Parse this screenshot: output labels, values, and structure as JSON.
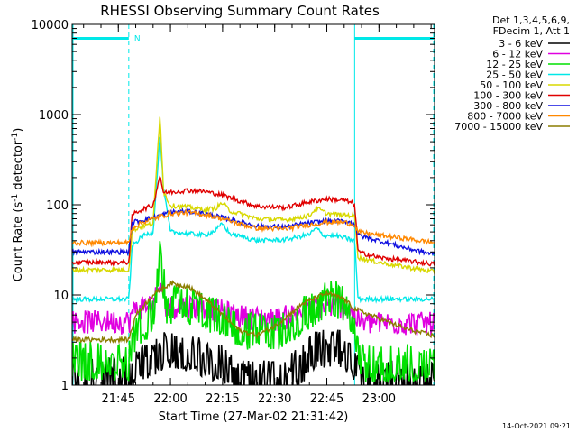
{
  "chart_data": {
    "type": "line",
    "title": "RHESSI Observing Summary Count Rates",
    "xlabel": "Start Time (27-Mar-02 21:31:42)",
    "ylabel": "Count Rate (s⁻¹ detector⁻¹)",
    "ylabel_parts": {
      "main": "Count Rate (s",
      "exp1": "-1",
      "mid": " detector",
      "exp2": "-1",
      "end": ")"
    },
    "ylog": true,
    "ylim": [
      1,
      10000
    ],
    "xlim": [
      "21:31:42",
      "23:16:00"
    ],
    "x_ticks": [
      "21:45",
      "22:00",
      "22:15",
      "22:30",
      "22:45",
      "23:00"
    ],
    "y_ticks": [
      "1",
      "10",
      "100",
      "1000",
      "10000"
    ],
    "legend_header": [
      "Det 1,3,4,5,6,9,",
      "FDecim 1, Att 1"
    ],
    "flag_label": "N",
    "night_intervals": [
      [
        "21:31:42",
        "21:48:00"
      ],
      [
        "22:53:00",
        "23:16:00"
      ]
    ],
    "series": [
      {
        "name": "3 - 6 keV",
        "color": "#000000",
        "noise": "spiky",
        "points": [
          [
            "21:31",
            1.1
          ],
          [
            "21:48",
            1.1
          ],
          [
            "21:50",
            1.4
          ],
          [
            "21:55",
            1.8
          ],
          [
            "22:00",
            2.2
          ],
          [
            "22:05",
            2.0
          ],
          [
            "22:10",
            1.7
          ],
          [
            "22:15",
            1.5
          ],
          [
            "22:20",
            1.0
          ],
          [
            "22:30",
            1.0
          ],
          [
            "22:38",
            1.5
          ],
          [
            "22:42",
            2.2
          ],
          [
            "22:48",
            2.3
          ],
          [
            "22:53",
            1.6
          ],
          [
            "22:55",
            1.0
          ],
          [
            "23:16",
            1.0
          ]
        ]
      },
      {
        "name": "6 - 12 keV",
        "color": "#e000e0",
        "noise": "band",
        "points": [
          [
            "21:31",
            5.2
          ],
          [
            "21:48",
            5.2
          ],
          [
            "21:50",
            7.2
          ],
          [
            "21:55",
            8.2
          ],
          [
            "21:57",
            13
          ],
          [
            "21:59",
            7.5
          ],
          [
            "22:05",
            7.8
          ],
          [
            "22:10",
            7.5
          ],
          [
            "22:15",
            6.8
          ],
          [
            "22:20",
            6.0
          ],
          [
            "22:30",
            5.5
          ],
          [
            "22:40",
            7.0
          ],
          [
            "22:45",
            7.8
          ],
          [
            "22:50",
            7.5
          ],
          [
            "22:53",
            6.0
          ],
          [
            "22:55",
            5.0
          ],
          [
            "23:16",
            5.0
          ]
        ]
      },
      {
        "name": "12 - 25 keV",
        "color": "#00e000",
        "noise": "spiky",
        "points": [
          [
            "21:31",
            1.6
          ],
          [
            "21:48",
            1.6
          ],
          [
            "21:50",
            3.5
          ],
          [
            "21:55",
            5
          ],
          [
            "21:57",
            25
          ],
          [
            "21:59",
            6
          ],
          [
            "22:02",
            7
          ],
          [
            "22:06",
            6.5
          ],
          [
            "22:10",
            5.5
          ],
          [
            "22:15",
            4.5
          ],
          [
            "22:20",
            3.5
          ],
          [
            "22:30",
            3.2
          ],
          [
            "22:38",
            5
          ],
          [
            "22:43",
            7
          ],
          [
            "22:47",
            8
          ],
          [
            "22:51",
            6.5
          ],
          [
            "22:53",
            4
          ],
          [
            "22:55",
            1.5
          ],
          [
            "23:16",
            1.5
          ]
        ]
      },
      {
        "name": "25 - 50 keV",
        "color": "#00e8e8",
        "points": [
          [
            "21:31",
            9
          ],
          [
            "21:48",
            9
          ],
          [
            "21:49",
            35
          ],
          [
            "21:52",
            45
          ],
          [
            "21:55",
            50
          ],
          [
            "21:57",
            600
          ],
          [
            "21:58",
            150
          ],
          [
            "22:00",
            50
          ],
          [
            "22:05",
            48
          ],
          [
            "22:10",
            46
          ],
          [
            "22:13",
            52
          ],
          [
            "22:15",
            62
          ],
          [
            "22:17",
            48
          ],
          [
            "22:25",
            40
          ],
          [
            "22:33",
            41
          ],
          [
            "22:40",
            47
          ],
          [
            "22:42",
            55
          ],
          [
            "22:44",
            46
          ],
          [
            "22:48",
            45
          ],
          [
            "22:53",
            40
          ],
          [
            "22:54",
            9
          ],
          [
            "23:16",
            9
          ]
        ]
      },
      {
        "name": "50 - 100 keV",
        "color": "#d8d800",
        "points": [
          [
            "21:31",
            19
          ],
          [
            "21:48",
            19
          ],
          [
            "21:49",
            52
          ],
          [
            "21:52",
            58
          ],
          [
            "21:55",
            62
          ],
          [
            "21:57",
            1050
          ],
          [
            "21:58",
            140
          ],
          [
            "22:00",
            98
          ],
          [
            "22:05",
            95
          ],
          [
            "22:10",
            88
          ],
          [
            "22:13",
            92
          ],
          [
            "22:15",
            105
          ],
          [
            "22:17",
            86
          ],
          [
            "22:25",
            70
          ],
          [
            "22:33",
            68
          ],
          [
            "22:40",
            76
          ],
          [
            "22:42",
            92
          ],
          [
            "22:45",
            80
          ],
          [
            "22:48",
            78
          ],
          [
            "22:53",
            76
          ],
          [
            "22:54",
            26
          ],
          [
            "23:00",
            23
          ],
          [
            "23:16",
            18
          ]
        ]
      },
      {
        "name": "100 - 300 keV",
        "color": "#e00000",
        "points": [
          [
            "21:31",
            23
          ],
          [
            "21:48",
            23
          ],
          [
            "21:49",
            78
          ],
          [
            "21:52",
            90
          ],
          [
            "21:55",
            98
          ],
          [
            "21:57",
            215
          ],
          [
            "21:58",
            135
          ],
          [
            "22:00",
            138
          ],
          [
            "22:05",
            145
          ],
          [
            "22:10",
            140
          ],
          [
            "22:15",
            128
          ],
          [
            "22:20",
            110
          ],
          [
            "22:25",
            96
          ],
          [
            "22:33",
            93
          ],
          [
            "22:40",
            108
          ],
          [
            "22:45",
            116
          ],
          [
            "22:50",
            112
          ],
          [
            "22:53",
            102
          ],
          [
            "22:54",
            30
          ],
          [
            "23:00",
            26
          ],
          [
            "23:16",
            22
          ]
        ]
      },
      {
        "name": "300 - 800 keV",
        "color": "#1010e0",
        "points": [
          [
            "21:31",
            30
          ],
          [
            "21:48",
            30
          ],
          [
            "21:49",
            64
          ],
          [
            "21:52",
            68
          ],
          [
            "21:55",
            72
          ],
          [
            "22:00",
            83
          ],
          [
            "22:05",
            85
          ],
          [
            "22:10",
            80
          ],
          [
            "22:15",
            72
          ],
          [
            "22:20",
            65
          ],
          [
            "22:25",
            58
          ],
          [
            "22:33",
            57
          ],
          [
            "22:40",
            63
          ],
          [
            "22:45",
            66
          ],
          [
            "22:50",
            66
          ],
          [
            "22:53",
            62
          ],
          [
            "22:54",
            46
          ],
          [
            "23:00",
            40
          ],
          [
            "23:08",
            33
          ],
          [
            "23:16",
            28
          ]
        ]
      },
      {
        "name": "800 - 7000 keV",
        "color": "#ff8800",
        "points": [
          [
            "21:31",
            38
          ],
          [
            "21:48",
            38
          ],
          [
            "21:49",
            56
          ],
          [
            "21:52",
            64
          ],
          [
            "21:55",
            70
          ],
          [
            "22:00",
            80
          ],
          [
            "22:05",
            82
          ],
          [
            "22:10",
            78
          ],
          [
            "22:15",
            70
          ],
          [
            "22:20",
            61
          ],
          [
            "22:25",
            55
          ],
          [
            "22:33",
            54
          ],
          [
            "22:40",
            60
          ],
          [
            "22:45",
            64
          ],
          [
            "22:50",
            64
          ],
          [
            "22:53",
            60
          ],
          [
            "22:54",
            50
          ],
          [
            "23:00",
            46
          ],
          [
            "23:08",
            42
          ],
          [
            "23:16",
            38
          ]
        ]
      },
      {
        "name": "7000 - 15000 keV",
        "color": "#8b7d00",
        "points": [
          [
            "21:31",
            3.2
          ],
          [
            "21:48",
            3.2
          ],
          [
            "21:50",
            6
          ],
          [
            "21:55",
            10
          ],
          [
            "22:00",
            13.5
          ],
          [
            "22:05",
            12.5
          ],
          [
            "22:10",
            9
          ],
          [
            "22:15",
            6
          ],
          [
            "22:20",
            4
          ],
          [
            "22:25",
            3.6
          ],
          [
            "22:30",
            4.5
          ],
          [
            "22:38",
            8
          ],
          [
            "22:45",
            10.5
          ],
          [
            "22:50",
            9
          ],
          [
            "22:53",
            7
          ],
          [
            "23:00",
            5.5
          ],
          [
            "23:08",
            4.2
          ],
          [
            "23:16",
            3.5
          ]
        ]
      }
    ]
  },
  "footer": {
    "date": "14-Oct-2021 09:21"
  }
}
